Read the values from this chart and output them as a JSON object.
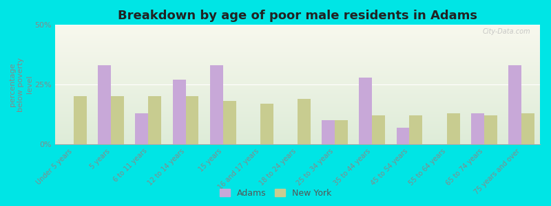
{
  "title": "Breakdown by age of poor male residents in Adams",
  "ylabel": "percentage\nbelow poverty\nlevel",
  "categories": [
    "Under 5 years",
    "5 years",
    "6 to 11 years",
    "12 to 14 years",
    "15 years",
    "16 and 17 years",
    "18 to 24 years",
    "25 to 34 years",
    "35 to 44 years",
    "45 to 54 years",
    "55 to 64 years",
    "65 to 74 years",
    "75 years and over"
  ],
  "adams_values": [
    0,
    33.0,
    13.0,
    27.0,
    33.0,
    0,
    0,
    10.0,
    28.0,
    7.0,
    0,
    13.0,
    33.0
  ],
  "ny_values": [
    20.0,
    20.0,
    20.0,
    20.0,
    18.0,
    17.0,
    19.0,
    10.0,
    12.0,
    12.0,
    13.0,
    12.0,
    13.0
  ],
  "adams_color": "#c8a8d8",
  "ny_color": "#c8cc90",
  "outer_bg": "#00e5e5",
  "plot_bg_top": "#f8f8ee",
  "plot_bg_bottom": "#deecd8",
  "ylim": [
    0,
    50
  ],
  "yticks": [
    0,
    25,
    50
  ],
  "ytick_labels": [
    "0%",
    "25%",
    "50%"
  ],
  "bar_width": 0.35,
  "title_fontsize": 13,
  "label_fontsize": 7.0,
  "axis_fontsize": 8,
  "legend_fontsize": 9,
  "watermark": "City-Data.com"
}
